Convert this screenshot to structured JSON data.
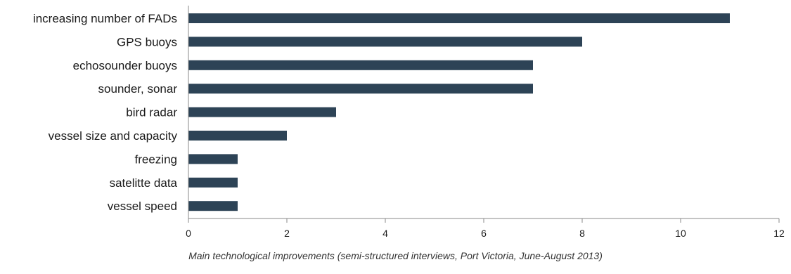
{
  "chart_data": {
    "type": "bar",
    "orientation": "horizontal",
    "categories": [
      "increasing number of FADs",
      "GPS buoys",
      "echosounder buoys",
      "sounder, sonar",
      "bird radar",
      "vessel size and capacity",
      "freezing",
      "satelitte data",
      "vessel speed"
    ],
    "values": [
      11,
      8,
      7,
      7,
      3,
      2,
      1,
      1,
      1
    ],
    "xlim": [
      0,
      12
    ],
    "xticks": [
      0,
      2,
      4,
      6,
      8,
      10,
      12
    ],
    "grid": false,
    "bar_color": "#2d4356",
    "caption": "Main technological improvements (semi-structured interviews, Port  Victoria, June-August 2013)"
  }
}
